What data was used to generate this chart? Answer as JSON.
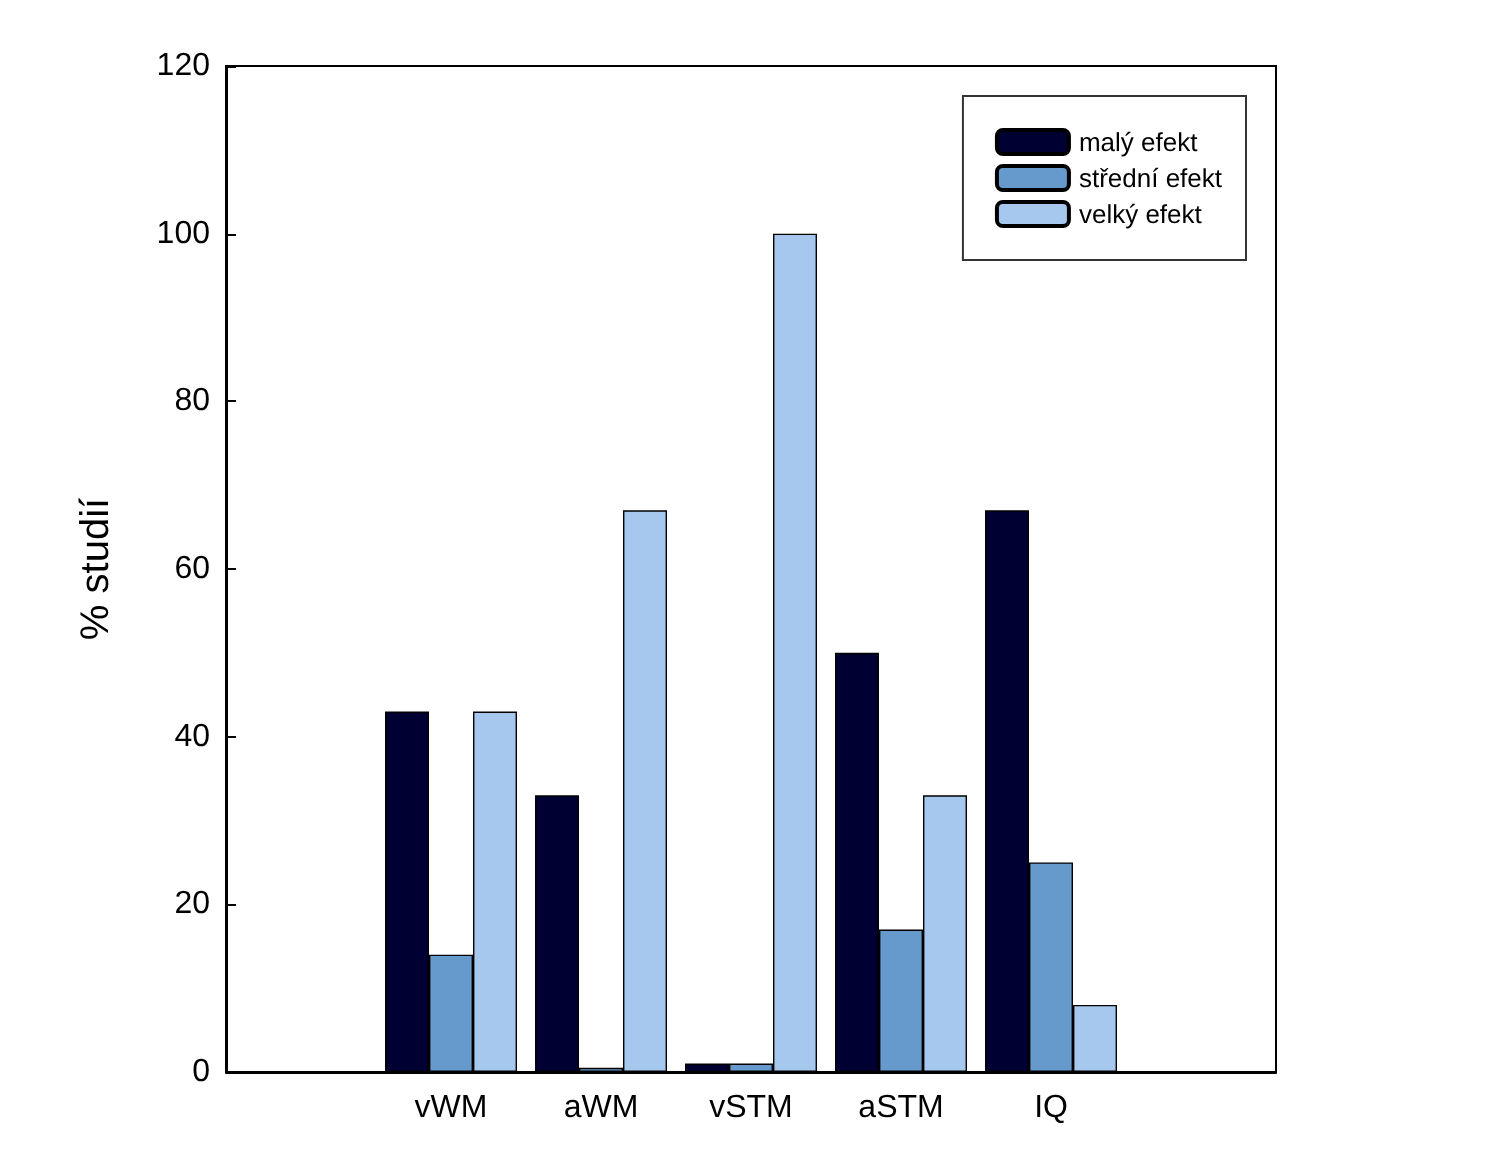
{
  "chart_data": {
    "type": "bar",
    "ylabel": "% studií",
    "categories": [
      null,
      "vWM",
      "aWM",
      "vSTM",
      "aSTM",
      "IQ",
      null
    ],
    "series": [
      {
        "name": "malý efekt",
        "color": "#000033",
        "values": [
          null,
          43,
          33,
          1,
          50,
          67,
          null
        ]
      },
      {
        "name": "střední efekt",
        "color": "#6699cc",
        "values": [
          null,
          14,
          0.5,
          1,
          17,
          25,
          null
        ]
      },
      {
        "name": "velký efekt",
        "color": "#a6c8ee",
        "values": [
          null,
          43,
          67,
          100,
          33,
          8,
          null
        ]
      }
    ],
    "ylim": [
      0,
      120
    ],
    "yticks": [
      0,
      20,
      40,
      60,
      80,
      100,
      120
    ],
    "grid": false,
    "legend": "top right"
  }
}
